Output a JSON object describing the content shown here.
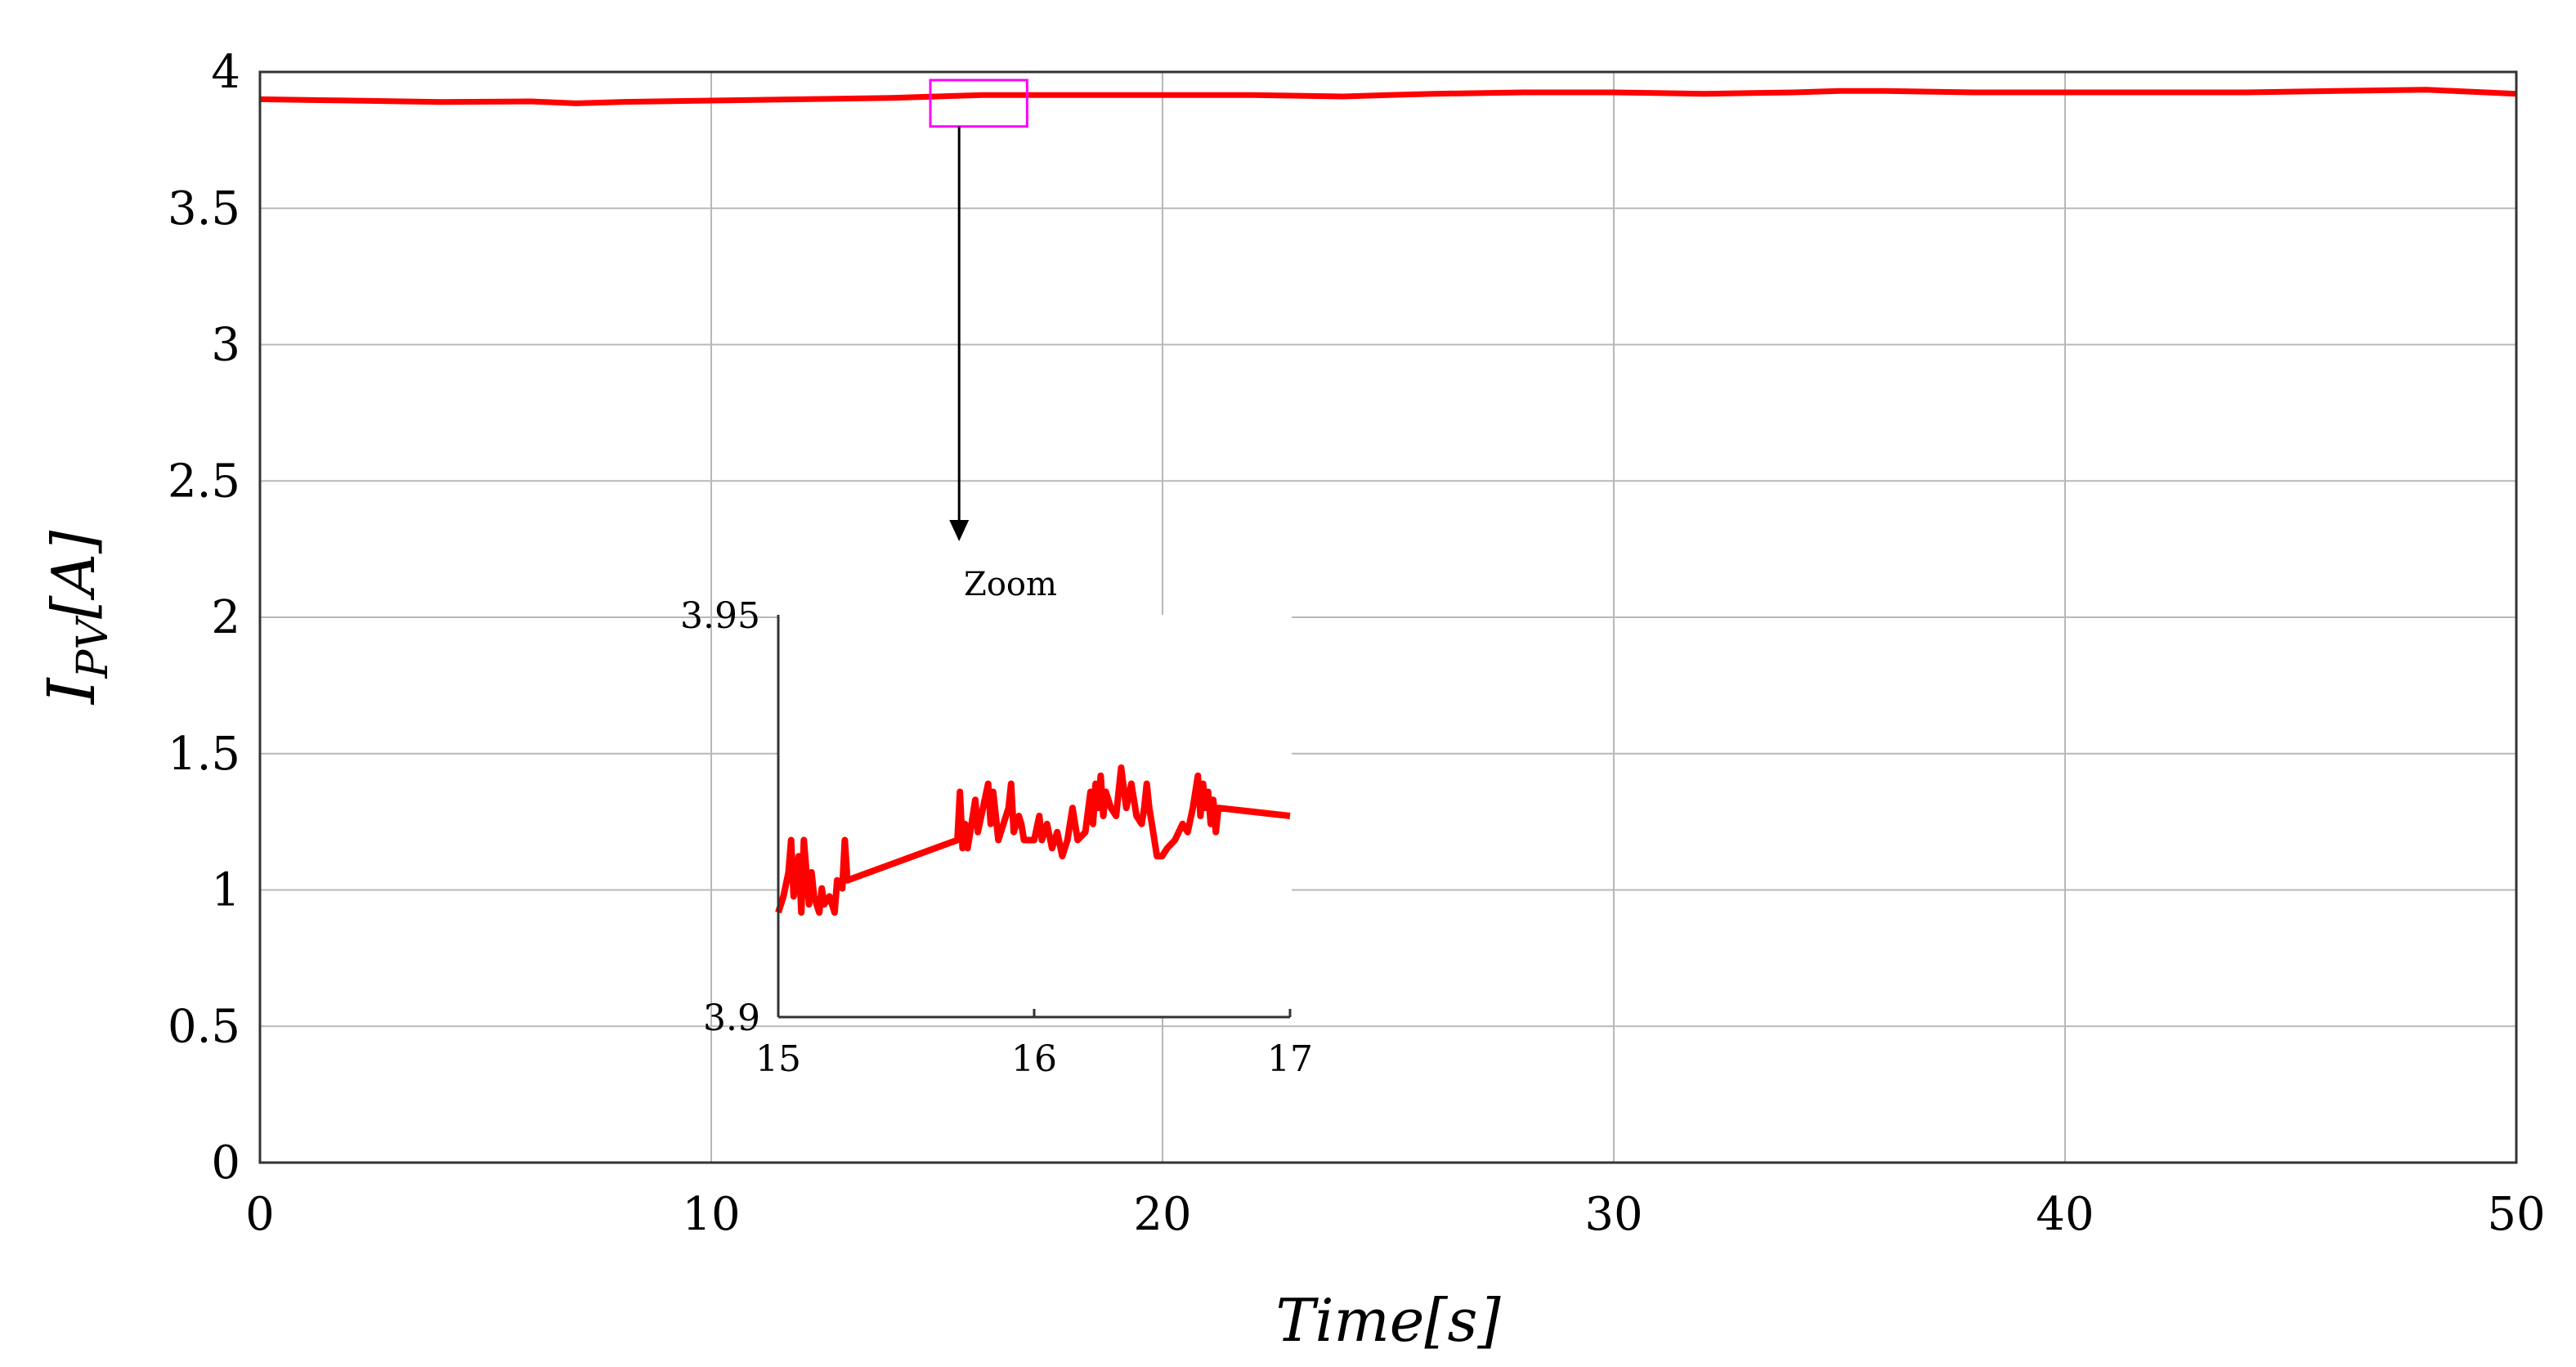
{
  "chart_data": [
    {
      "type": "line",
      "title": "",
      "xlabel": "Time[s]",
      "ylabel_main": "I",
      "ylabel_sub": "PV",
      "ylabel_unit": "[A]",
      "xlim": [
        0,
        50
      ],
      "ylim": [
        0,
        4
      ],
      "xticks": [
        0,
        10,
        20,
        30,
        40,
        50
      ],
      "xtick_labels": [
        "0",
        "10",
        "20",
        "30",
        "40",
        "50"
      ],
      "yticks": [
        0,
        0.5,
        1,
        1.5,
        2,
        2.5,
        3,
        3.5,
        4
      ],
      "ytick_labels": [
        "0",
        "0.5",
        "1",
        "1.5",
        "2",
        "2.5",
        "3",
        "3.5",
        "4"
      ],
      "grid": true,
      "series_color": "#ff0000",
      "series": [
        {
          "x": [
            0,
            2,
            4,
            6,
            7,
            8,
            10,
            12,
            14,
            15,
            16,
            17,
            18,
            20,
            22,
            24,
            25,
            26,
            28,
            30,
            32,
            34,
            35,
            36,
            38,
            40,
            42,
            44,
            46,
            48,
            50
          ],
          "values": [
            3.9,
            3.895,
            3.89,
            3.892,
            3.885,
            3.89,
            3.895,
            3.9,
            3.905,
            3.91,
            3.915,
            3.915,
            3.915,
            3.915,
            3.915,
            3.91,
            3.915,
            3.92,
            3.925,
            3.925,
            3.92,
            3.925,
            3.93,
            3.93,
            3.925,
            3.925,
            3.925,
            3.925,
            3.93,
            3.935,
            3.92
          ]
        }
      ]
    },
    {
      "type": "line",
      "title": "",
      "annotation": "Zoom",
      "xlim": [
        15,
        17
      ],
      "ylim": [
        3.9,
        3.95
      ],
      "xticks": [
        15,
        16,
        17
      ],
      "xtick_labels": [
        "15",
        "16",
        "17"
      ],
      "ytick_labels": [
        "3.9",
        "3.95"
      ],
      "grid": false,
      "zoom_box_color": "#ff00ff",
      "series_color": "#ff0000",
      "series": [
        {
          "x": [
            15.0,
            15.02,
            15.04,
            15.05,
            15.06,
            15.08,
            15.09,
            15.1,
            15.12,
            15.13,
            15.14,
            15.16,
            15.17,
            15.18,
            15.2,
            15.22,
            15.23,
            15.25,
            15.26,
            15.27,
            15.7,
            15.71,
            15.72,
            15.73,
            15.74,
            15.75,
            15.77,
            15.78,
            15.8,
            15.82,
            15.83,
            15.84,
            15.86,
            15.88,
            15.9,
            15.91,
            15.92,
            15.94,
            15.95,
            15.96,
            16.0,
            16.02,
            16.03,
            16.05,
            16.07,
            16.09,
            16.11,
            16.13,
            16.15,
            16.17,
            16.2,
            16.22,
            16.23,
            16.24,
            16.25,
            16.26,
            16.27,
            16.28,
            16.3,
            16.32,
            16.33,
            16.34,
            16.36,
            16.38,
            16.4,
            16.42,
            16.43,
            16.44,
            16.45,
            16.46,
            16.47,
            16.48,
            16.5,
            16.52,
            16.55,
            16.58,
            16.6,
            16.62,
            16.64,
            16.65,
            16.66,
            16.67,
            16.68,
            16.69,
            16.7,
            16.71,
            16.72,
            17.0
          ],
          "values": [
            3.913,
            3.915,
            3.918,
            3.922,
            3.915,
            3.92,
            3.913,
            3.922,
            3.914,
            3.918,
            3.915,
            3.913,
            3.916,
            3.914,
            3.915,
            3.913,
            3.917,
            3.916,
            3.922,
            3.917,
            3.922,
            3.928,
            3.921,
            3.924,
            3.921,
            3.923,
            3.927,
            3.923,
            3.926,
            3.929,
            3.924,
            3.928,
            3.922,
            3.924,
            3.926,
            3.929,
            3.923,
            3.925,
            3.924,
            3.922,
            3.922,
            3.925,
            3.922,
            3.924,
            3.921,
            3.923,
            3.92,
            3.922,
            3.926,
            3.922,
            3.923,
            3.928,
            3.924,
            3.929,
            3.926,
            3.93,
            3.925,
            3.928,
            3.926,
            3.925,
            3.928,
            3.931,
            3.926,
            3.929,
            3.925,
            3.924,
            3.926,
            3.929,
            3.926,
            3.924,
            3.922,
            3.92,
            3.92,
            3.921,
            3.922,
            3.924,
            3.923,
            3.926,
            3.93,
            3.925,
            3.929,
            3.926,
            3.928,
            3.924,
            3.927,
            3.923,
            3.926,
            3.925
          ]
        }
      ]
    }
  ]
}
